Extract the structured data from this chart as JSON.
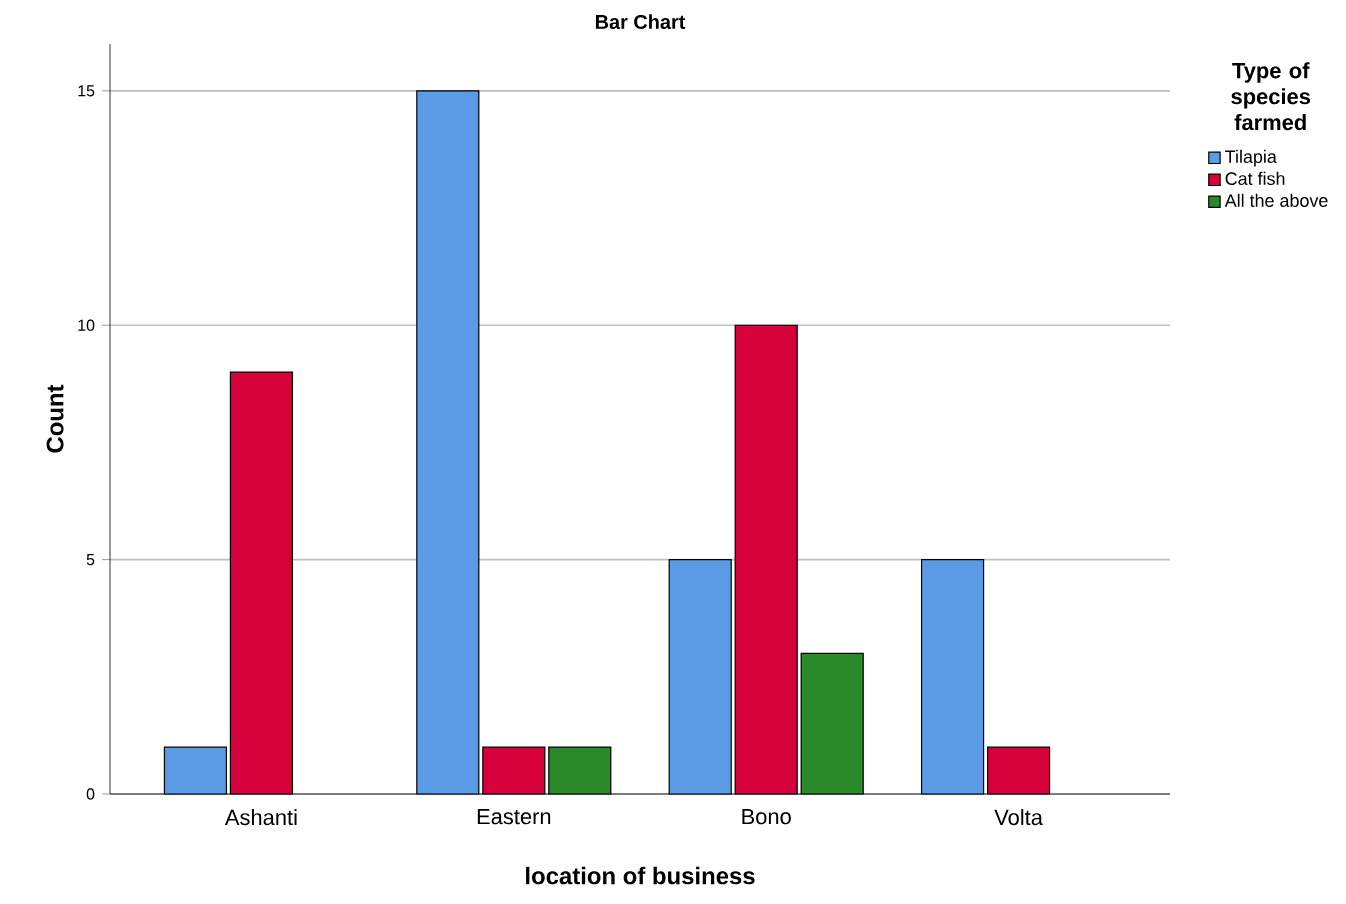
{
  "chart_data": {
    "type": "bar",
    "title": "Bar Chart",
    "xlabel": "location of business",
    "ylabel": "Count",
    "legend_title": "Type of species farmed",
    "categories": [
      "Ashanti",
      "Eastern",
      "Bono",
      "Volta"
    ],
    "series": [
      {
        "name": "Tilapia",
        "color": "#5b9be6",
        "values": [
          1,
          15,
          5,
          5
        ]
      },
      {
        "name": "Cat fish",
        "color": "#d6003a",
        "values": [
          9,
          1,
          10,
          1
        ]
      },
      {
        "name": "All the above",
        "color": "#2a8a2a",
        "values": [
          null,
          1,
          3,
          null
        ]
      }
    ],
    "ylim": [
      0,
      16
    ],
    "yticks": [
      0,
      5,
      10,
      15
    ],
    "grid": "y",
    "legend": "right"
  }
}
